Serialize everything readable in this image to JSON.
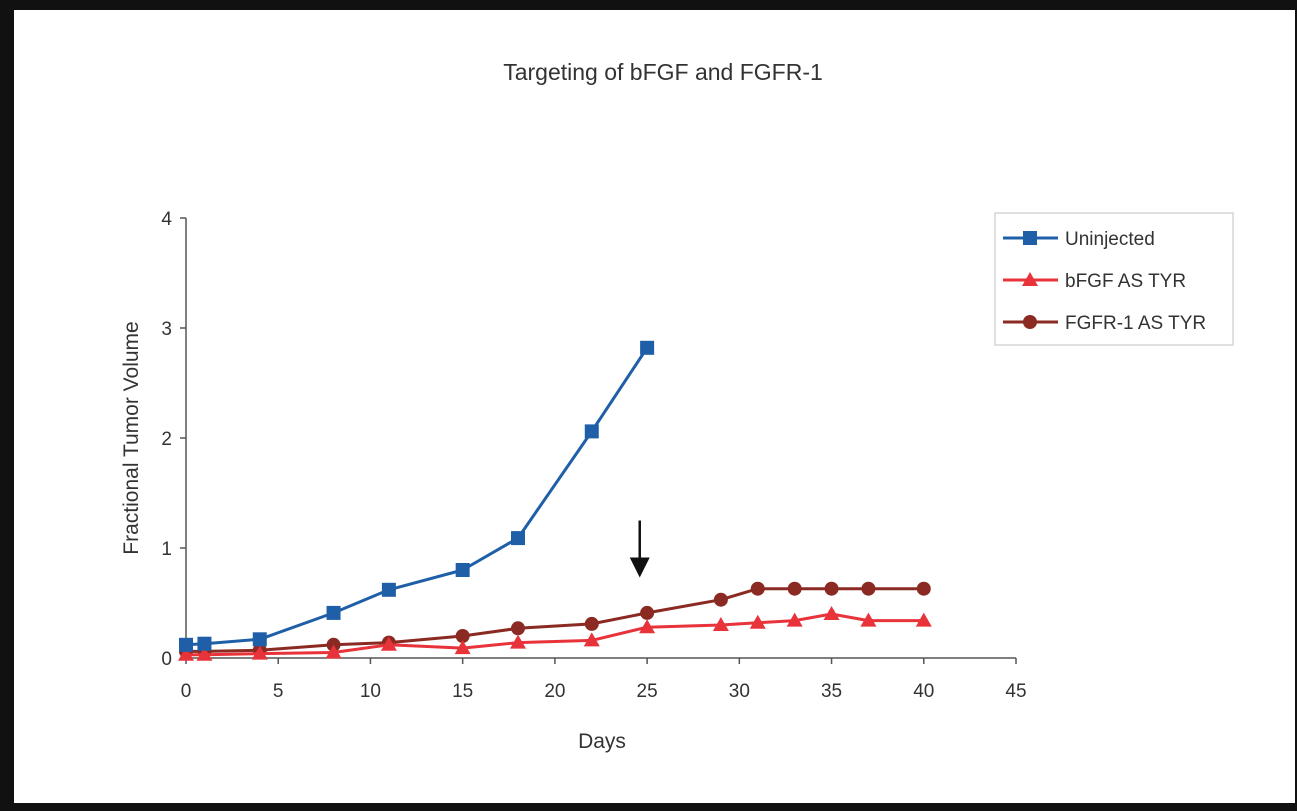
{
  "chart_data": {
    "type": "line",
    "title": "Targeting of bFGF and FGFR-1",
    "xlabel": "Days",
    "ylabel": "Fractional Tumor Volume",
    "xlim": [
      0,
      45
    ],
    "ylim": [
      0,
      4
    ],
    "x_ticks": [
      "0",
      "5",
      "10",
      "15",
      "20",
      "25",
      "30",
      "35",
      "40",
      "45"
    ],
    "y_ticks": [
      "0",
      "1",
      "2",
      "3",
      "4"
    ],
    "grid": false,
    "legend_position": "right",
    "annotation": {
      "type": "arrow-down",
      "x": 24.6,
      "y_from": 1.25,
      "y_to": 0.75
    },
    "series": [
      {
        "name": "Uninjected",
        "color": "#1f5fa8",
        "marker": "square",
        "x": [
          0,
          1,
          4,
          8,
          11,
          15,
          18,
          22,
          25
        ],
        "y": [
          0.12,
          0.13,
          0.17,
          0.41,
          0.62,
          0.8,
          1.09,
          2.06,
          2.82
        ]
      },
      {
        "name": "bFGF AS TYR",
        "color": "#e8333b",
        "marker": "triangle",
        "x": [
          0,
          1,
          4,
          8,
          11,
          15,
          18,
          22,
          25,
          29,
          31,
          33,
          35,
          37,
          40
        ],
        "y": [
          0.03,
          0.03,
          0.04,
          0.05,
          0.12,
          0.09,
          0.14,
          0.16,
          0.28,
          0.3,
          0.32,
          0.34,
          0.4,
          0.34,
          0.34
        ]
      },
      {
        "name": "FGFR-1 AS TYR",
        "color": "#8b2a22",
        "marker": "circle",
        "x": [
          0,
          1,
          4,
          8,
          11,
          15,
          18,
          22,
          25,
          29,
          31,
          33,
          35,
          37,
          40
        ],
        "y": [
          0.06,
          0.06,
          0.07,
          0.12,
          0.14,
          0.2,
          0.27,
          0.31,
          0.41,
          0.53,
          0.63,
          0.63,
          0.63,
          0.63,
          0.63
        ]
      }
    ]
  }
}
